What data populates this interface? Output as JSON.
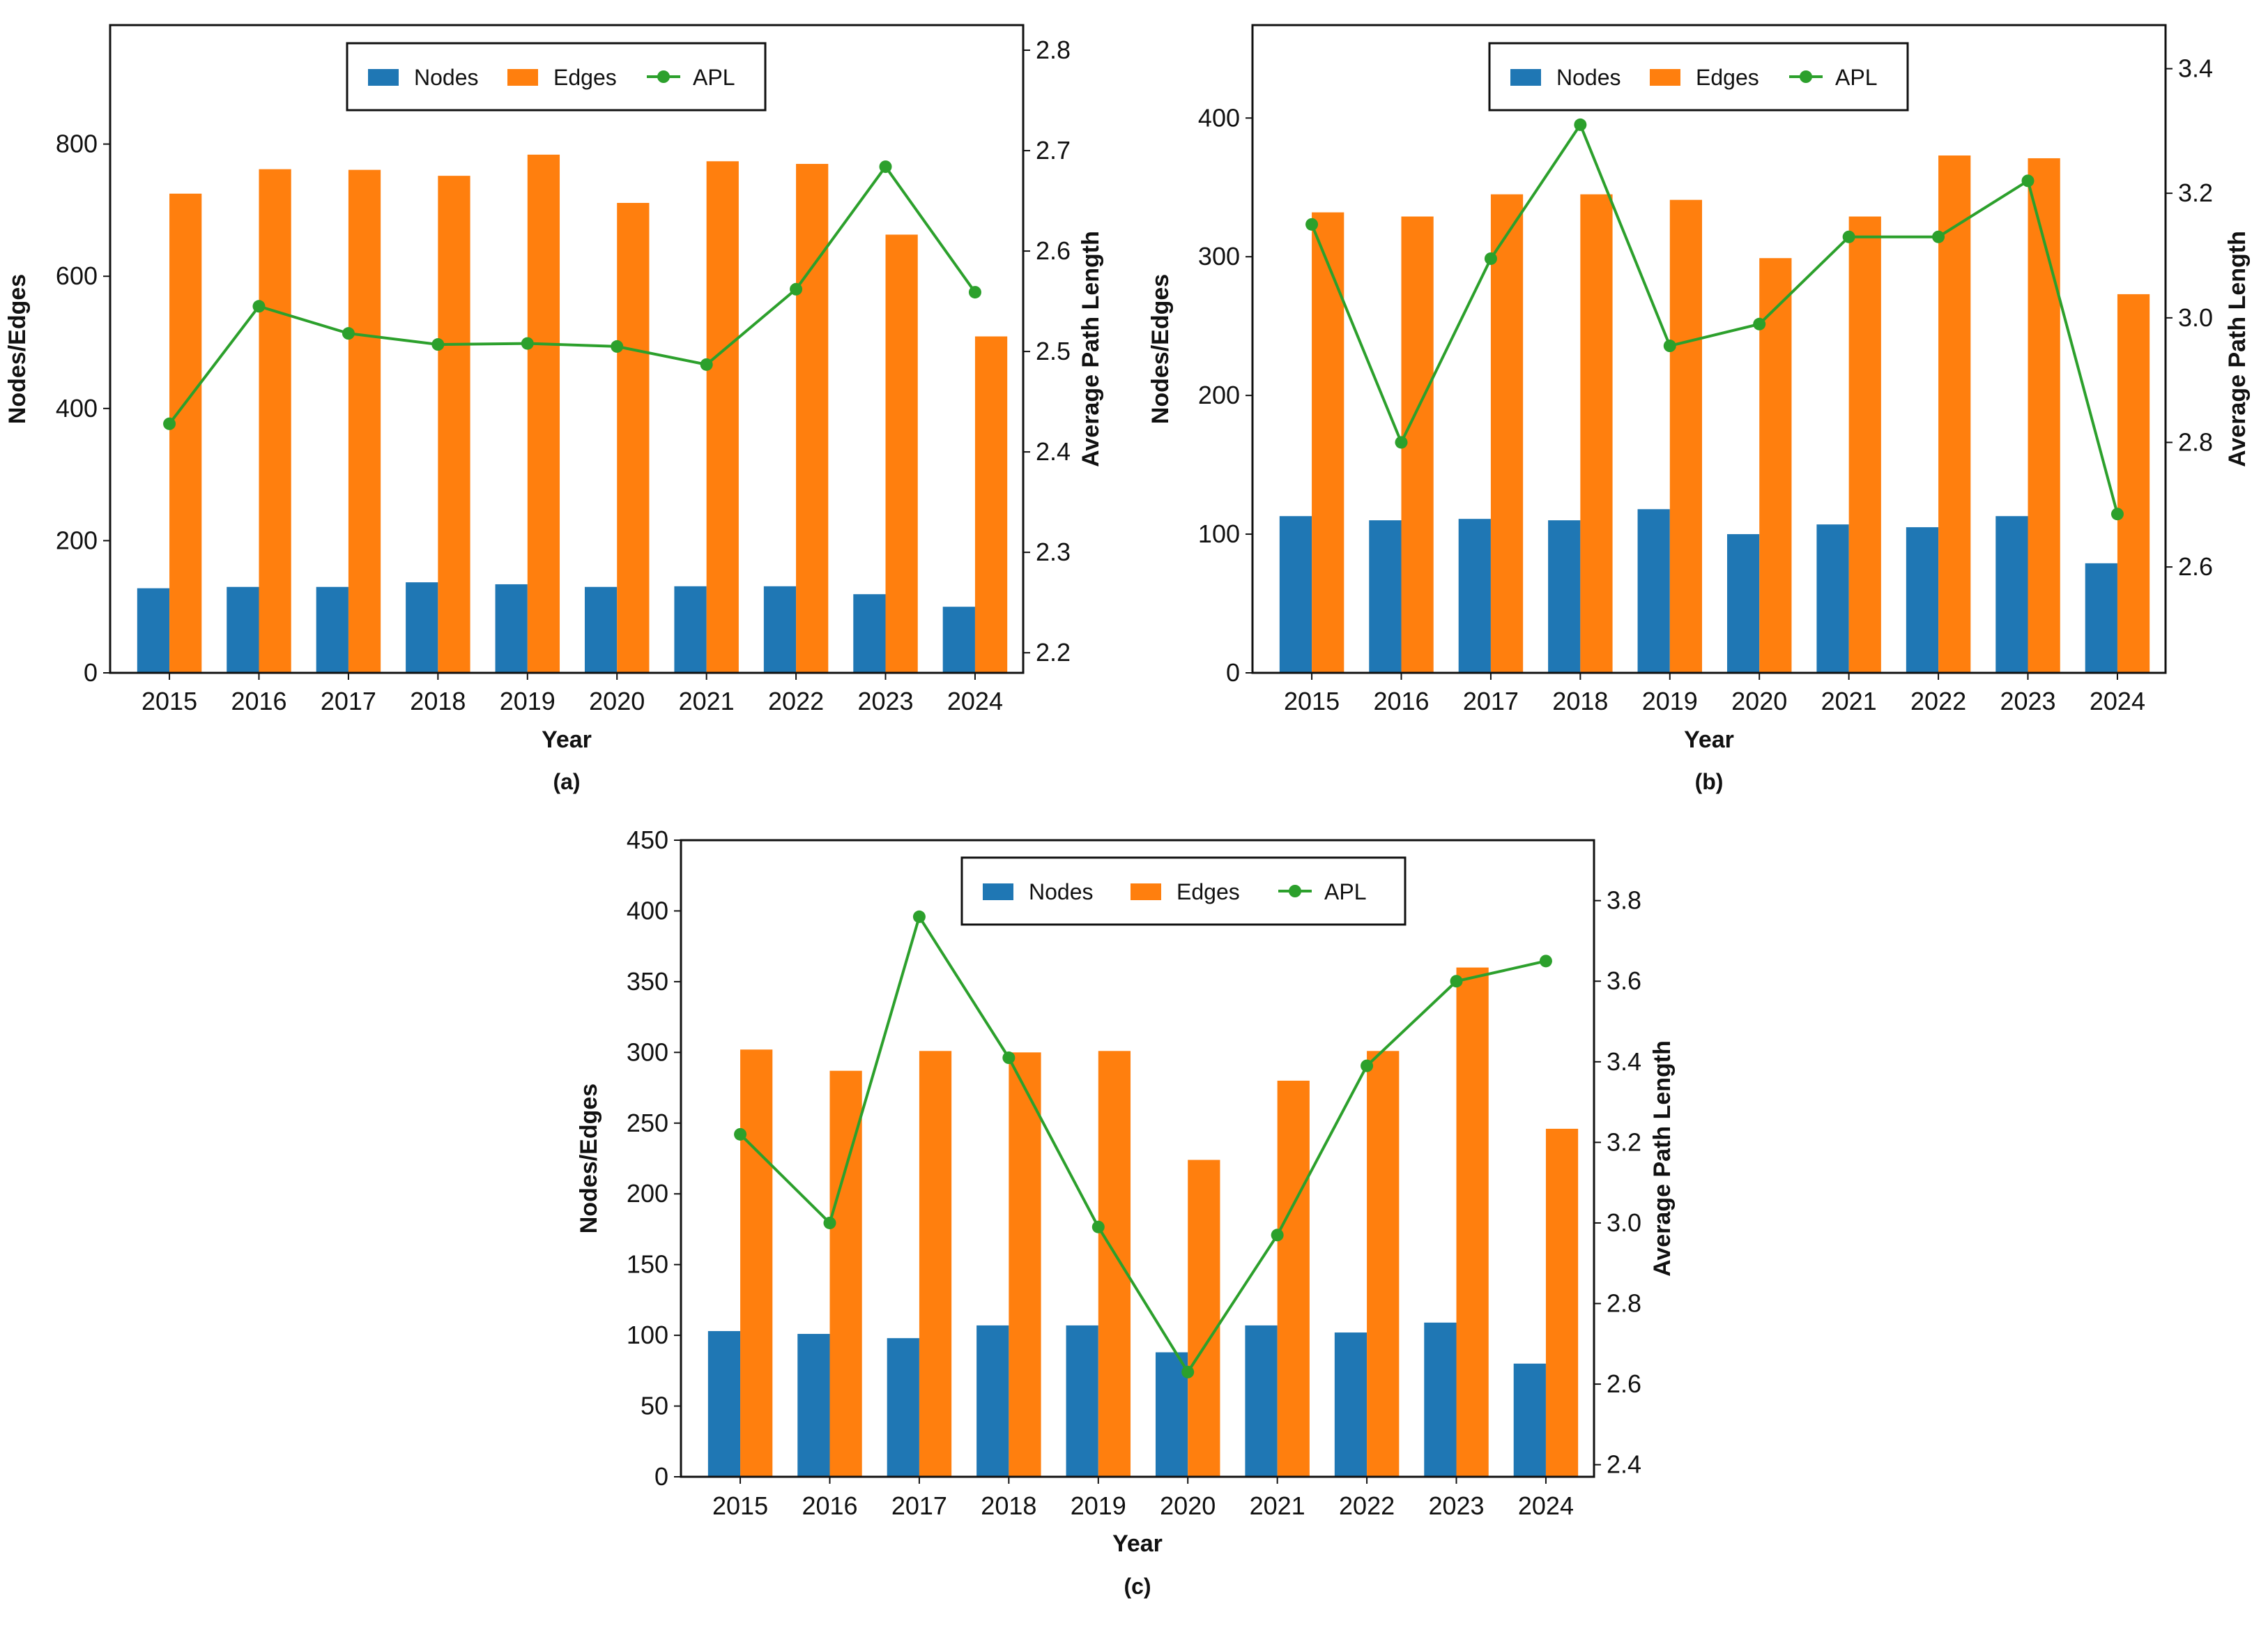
{
  "colors": {
    "nodes": "#1f77b4",
    "edges": "#ff7f0e",
    "apl": "#2ca02c"
  },
  "chart_data": [
    {
      "type": "bar",
      "panel_label": "(a)",
      "categories": [
        "2015",
        "2016",
        "2017",
        "2018",
        "2019",
        "2020",
        "2021",
        "2022",
        "2023",
        "2024"
      ],
      "series": [
        {
          "name": "Nodes",
          "values": [
            128,
            130,
            130,
            137,
            134,
            130,
            131,
            131,
            119,
            100
          ]
        },
        {
          "name": "Edges",
          "values": [
            725,
            762,
            761,
            752,
            784,
            711,
            774,
            770,
            663,
            509
          ]
        },
        {
          "name": "APL",
          "axis": "right",
          "type": "line",
          "values": [
            2.428,
            2.545,
            2.518,
            2.507,
            2.508,
            2.505,
            2.487,
            2.562,
            2.684,
            2.559
          ]
        }
      ],
      "xlabel": "Year",
      "ylabel": "Nodes/Edges",
      "y2label": "Average Path Length",
      "ylim": [
        0,
        980
      ],
      "yticks": [
        0,
        200,
        400,
        600,
        800
      ],
      "y2lim": [
        2.18,
        2.825
      ],
      "y2ticks": [
        "2.2",
        "2.3",
        "2.4",
        "2.5",
        "2.6",
        "2.7",
        "2.8"
      ],
      "legend": [
        "Nodes",
        "Edges",
        "APL"
      ],
      "legend_position": "top-center"
    },
    {
      "type": "bar",
      "panel_label": "(b)",
      "categories": [
        "2015",
        "2016",
        "2017",
        "2018",
        "2019",
        "2020",
        "2021",
        "2022",
        "2023",
        "2024"
      ],
      "series": [
        {
          "name": "Nodes",
          "values": [
            113,
            110,
            111,
            110,
            118,
            100,
            107,
            105,
            113,
            79
          ]
        },
        {
          "name": "Edges",
          "values": [
            332,
            329,
            345,
            345,
            341,
            299,
            329,
            373,
            371,
            273
          ]
        },
        {
          "name": "APL",
          "axis": "right",
          "type": "line",
          "values": [
            3.15,
            2.8,
            3.095,
            3.31,
            2.955,
            2.99,
            3.13,
            3.13,
            3.22,
            2.685
          ]
        }
      ],
      "xlabel": "Year",
      "ylabel": "Nodes/Edges",
      "y2label": "Average Path Length",
      "ylim": [
        0,
        467
      ],
      "yticks": [
        0,
        100,
        200,
        300,
        400
      ],
      "y2lim": [
        2.43,
        3.47
      ],
      "y2ticks": [
        "2.6",
        "2.8",
        "3.0",
        "3.2",
        "3.4"
      ],
      "legend": [
        "Nodes",
        "Edges",
        "APL"
      ],
      "legend_position": "top-center"
    },
    {
      "type": "bar",
      "panel_label": "(c)",
      "categories": [
        "2015",
        "2016",
        "2017",
        "2018",
        "2019",
        "2020",
        "2021",
        "2022",
        "2023",
        "2024"
      ],
      "series": [
        {
          "name": "Nodes",
          "values": [
            103,
            101,
            98,
            107,
            107,
            88,
            107,
            102,
            109,
            80
          ]
        },
        {
          "name": "Edges",
          "values": [
            302,
            287,
            301,
            300,
            301,
            224,
            280,
            301,
            360,
            246
          ]
        },
        {
          "name": "APL",
          "axis": "right",
          "type": "line",
          "values": [
            3.22,
            3.0,
            3.76,
            3.41,
            2.99,
            2.63,
            2.97,
            3.39,
            3.6,
            3.65
          ]
        }
      ],
      "xlabel": "Year",
      "ylabel": "Nodes/Edges",
      "y2label": "Average Path Length",
      "ylim": [
        0,
        450
      ],
      "yticks": [
        0,
        50,
        100,
        150,
        200,
        250,
        300,
        350,
        400,
        450
      ],
      "y2lim": [
        2.37,
        3.95
      ],
      "y2ticks": [
        "2.4",
        "2.6",
        "2.8",
        "3.0",
        "3.2",
        "3.4",
        "3.6",
        "3.8"
      ],
      "legend": [
        "Nodes",
        "Edges",
        "APL"
      ],
      "legend_position": "top-center"
    }
  ]
}
